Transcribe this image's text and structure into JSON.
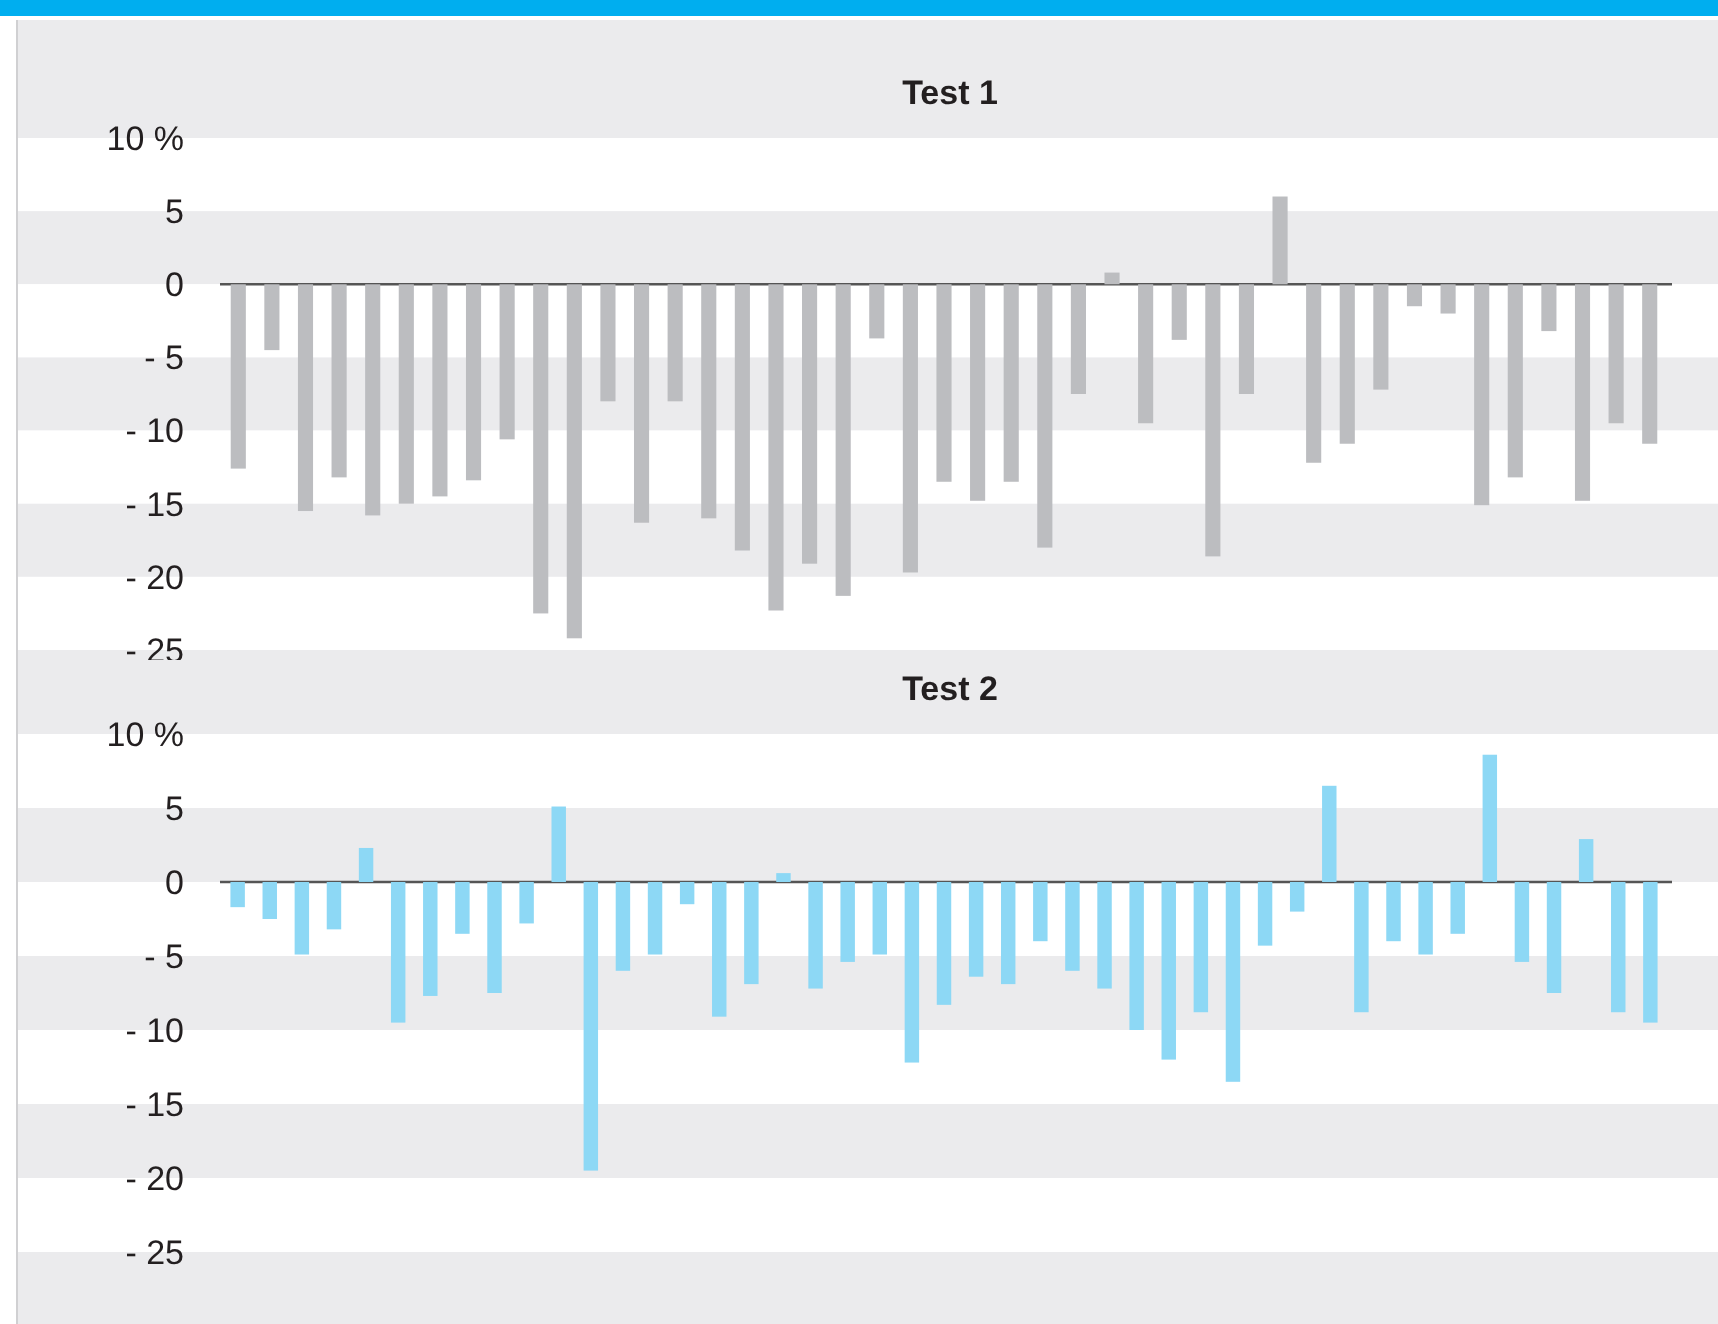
{
  "chart_data": [
    {
      "type": "bar",
      "title": "Test 1",
      "categories": [
        null,
        null,
        null,
        null,
        null,
        null,
        null,
        null,
        null,
        null,
        null,
        null,
        null,
        null,
        null,
        null,
        null,
        null,
        null,
        null,
        null,
        null,
        null,
        null,
        null,
        null,
        null,
        null,
        null,
        null,
        null,
        null,
        null,
        null,
        null,
        null,
        null,
        null,
        null,
        null,
        null,
        null,
        null
      ],
      "series": [
        {
          "color": "#bcbdc0",
          "values": [
            -12.6,
            -4.5,
            -15.5,
            -13.2,
            -15.8,
            -15.0,
            -14.5,
            -13.4,
            -10.6,
            -22.5,
            -24.2,
            -8.0,
            -16.3,
            -8.0,
            -16.0,
            -18.2,
            -22.3,
            -19.1,
            -21.3,
            -3.7,
            -19.7,
            -13.5,
            -14.8,
            -13.5,
            -18.0,
            -7.5,
            0.8,
            -9.5,
            -3.8,
            -18.6,
            -7.5,
            6.0,
            -12.2,
            -10.9,
            -7.2,
            -1.5,
            -2.0,
            -15.1,
            -13.2,
            -3.2,
            -14.8,
            -9.5,
            -10.9
          ]
        }
      ],
      "ylim": [
        -25,
        10
      ],
      "yticks": [
        {
          "value": 10,
          "label": "10 %"
        },
        {
          "value": 5,
          "label": "5"
        },
        {
          "value": 0,
          "label": "0"
        },
        {
          "value": -5,
          "label": "- 5"
        },
        {
          "value": -10,
          "label": "- 10"
        },
        {
          "value": -15,
          "label": "- 15"
        },
        {
          "value": -20,
          "label": "- 20"
        },
        {
          "value": -25,
          "label": "- 25"
        }
      ],
      "grid": "y"
    },
    {
      "type": "bar",
      "title": "Test 2",
      "categories": [
        null,
        null,
        null,
        null,
        null,
        null,
        null,
        null,
        null,
        null,
        null,
        null,
        null,
        null,
        null,
        null,
        null,
        null,
        null,
        null,
        null,
        null,
        null,
        null,
        null,
        null,
        null,
        null,
        null,
        null,
        null,
        null,
        null,
        null,
        null,
        null,
        null,
        null,
        null,
        null,
        null,
        null,
        null,
        null,
        null
      ],
      "series": [
        {
          "color": "#8dd8f5",
          "values": [
            -1.7,
            -2.5,
            -4.9,
            -3.2,
            2.3,
            -9.5,
            -7.7,
            -3.5,
            -7.5,
            -2.8,
            5.1,
            -19.5,
            -6.0,
            -4.9,
            -1.5,
            -9.1,
            -6.9,
            0.6,
            -7.2,
            -5.4,
            -4.9,
            -12.2,
            -8.3,
            -6.4,
            -6.9,
            -4.0,
            -6.0,
            -7.2,
            -10.0,
            -12.0,
            -8.8,
            -13.5,
            -4.3,
            -2.0,
            6.5,
            -8.8,
            -4.0,
            -4.9,
            -3.5,
            8.6,
            -5.4,
            -7.5,
            2.9,
            -8.8,
            -9.5
          ]
        }
      ],
      "ylim": [
        -25,
        10
      ],
      "yticks": [
        {
          "value": 10,
          "label": "10 %"
        },
        {
          "value": 5,
          "label": "5"
        },
        {
          "value": 0,
          "label": "0"
        },
        {
          "value": -5,
          "label": "- 5"
        },
        {
          "value": -10,
          "label": "- 10"
        },
        {
          "value": -15,
          "label": "- 15"
        },
        {
          "value": -20,
          "label": "- 20"
        },
        {
          "value": -25,
          "label": "- 25"
        }
      ],
      "grid": "y"
    }
  ]
}
